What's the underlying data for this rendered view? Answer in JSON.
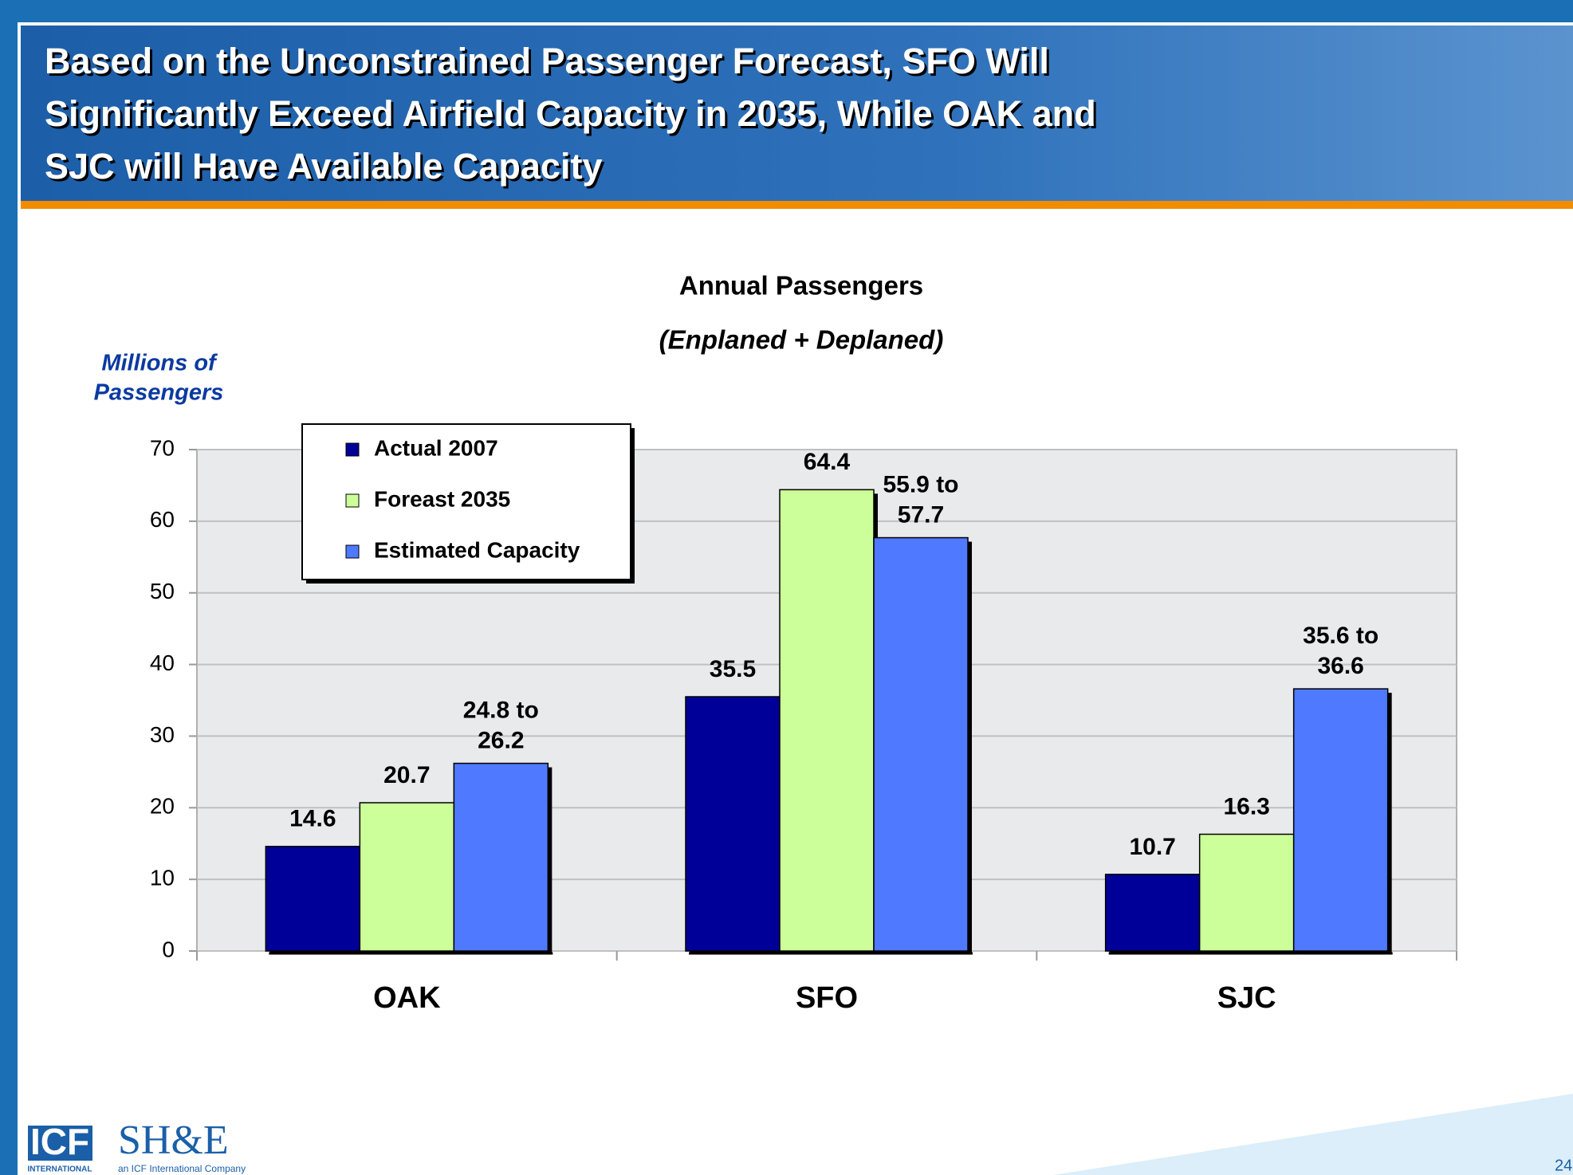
{
  "header": {
    "title_lines": [
      "Based on the Unconstrained Passenger Forecast, SFO Will",
      "Significantly Exceed Airfield Capacity in 2035, While OAK and",
      "SJC will Have Available Capacity"
    ]
  },
  "chart_data": {
    "type": "bar",
    "title": "Annual Passengers",
    "subtitle": "(Enplaned + Deplaned)",
    "y_label_lines": [
      "Millions of",
      "Passengers"
    ],
    "categories": [
      "OAK",
      "SFO",
      "SJC"
    ],
    "series": [
      {
        "name": "Actual 2007",
        "color": "#000099",
        "values": [
          14.6,
          35.5,
          10.7
        ]
      },
      {
        "name": "Foreast 2035",
        "color": "#ccff99",
        "values": [
          20.7,
          64.4,
          16.3
        ]
      },
      {
        "name": "Estimated Capacity",
        "color": "#4f79ff",
        "values": [
          26.2,
          57.7,
          36.6
        ],
        "value_labels": [
          "24.8 to 26.2",
          "55.9 to 57.7",
          "35.6 to 36.6"
        ]
      }
    ],
    "ylim": [
      0,
      70
    ],
    "yticks": [
      0,
      10,
      20,
      30,
      40,
      50,
      60,
      70
    ],
    "grid": true,
    "legend": "top-left"
  },
  "footer": {
    "logo_icf": "ICF",
    "logo_icf_sub": "INTERNATIONAL",
    "logo_she": "SH&E",
    "logo_she_sub": "an ICF International Company",
    "page_number": "24"
  }
}
